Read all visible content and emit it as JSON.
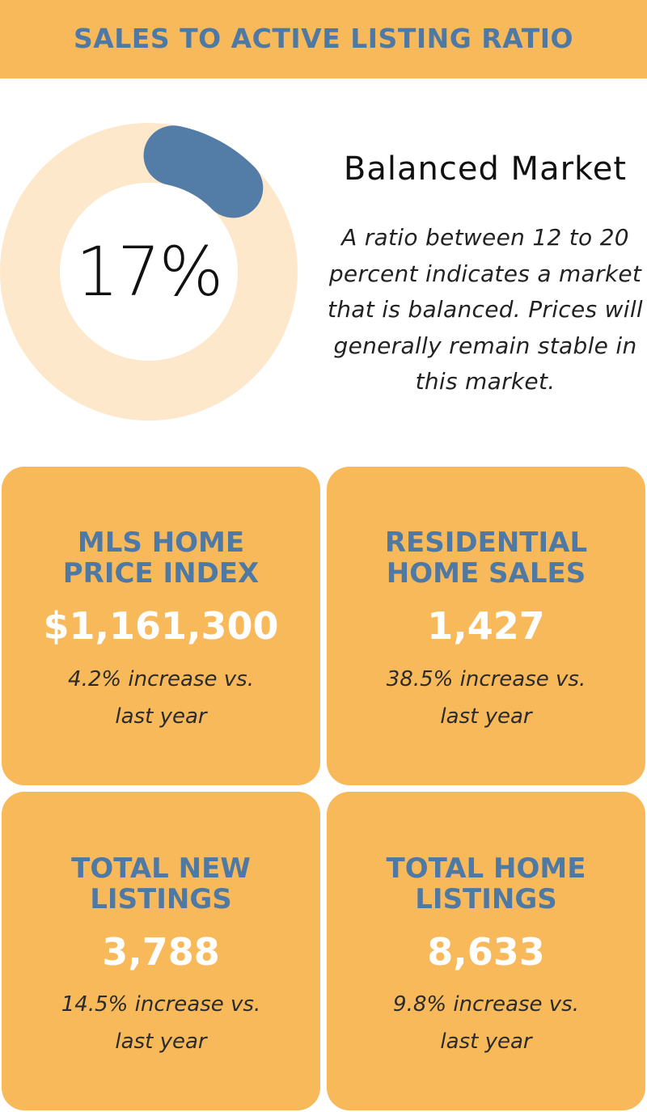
{
  "header": {
    "title": "SALES TO ACTIVE LISTING RATIO"
  },
  "ratio": {
    "value_label": "17%",
    "market_title": "Balanced Market",
    "description": "A ratio between 12 to 20 percent indicates a market that is balanced. Prices will generally remain stable in this market."
  },
  "chart_data": {
    "type": "pie",
    "value_percent": 17,
    "labels": [
      "17%"
    ],
    "colors": {
      "filled": "#537ca7",
      "track": "#fde8cc"
    }
  },
  "cards": [
    {
      "title_line1": "MLS HOME",
      "title_line2": "PRICE INDEX",
      "value": "$1,161,300",
      "change_line1": "4.2% increase vs.",
      "change_line2": "last year"
    },
    {
      "title_line1": "RESIDENTIAL",
      "title_line2": "HOME SALES",
      "value": "1,427",
      "change_line1": "38.5% increase vs.",
      "change_line2": "last year"
    },
    {
      "title_line1": "TOTAL NEW",
      "title_line2": "LISTINGS",
      "value": "3,788",
      "change_line1": "14.5% increase vs.",
      "change_line2": "last year"
    },
    {
      "title_line1": "TOTAL HOME",
      "title_line2": "LISTINGS",
      "value": "8,633",
      "change_line1": "9.8% increase vs.",
      "change_line2": "last year"
    }
  ],
  "colors": {
    "accent_orange": "#f8b95b",
    "accent_blue": "#4f79a5"
  }
}
